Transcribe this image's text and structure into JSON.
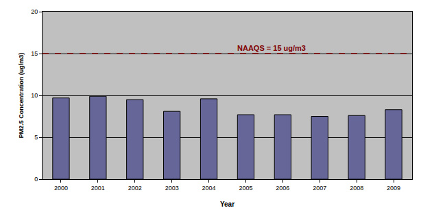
{
  "chart_data": {
    "type": "bar",
    "x_label": "Year",
    "y_label": "PM2.5 Concentration (ug/m3)",
    "categories": [
      "2000",
      "2001",
      "2002",
      "2003",
      "2004",
      "2005",
      "2006",
      "2007",
      "2008",
      "2009"
    ],
    "values": [
      9.7,
      9.9,
      9.5,
      8.1,
      9.6,
      7.7,
      7.7,
      7.5,
      7.6,
      8.3
    ],
    "color": "#666699",
    "ylim": [
      0,
      20
    ],
    "yticks": [
      0,
      5,
      10,
      15,
      20
    ],
    "grid": true,
    "annotations": [
      {
        "text": "NAAQS = 15 ug/m3",
        "y": 15
      }
    ]
  }
}
